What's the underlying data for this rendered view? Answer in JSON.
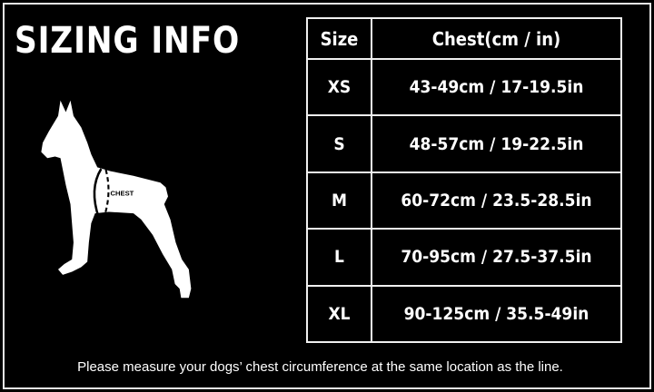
{
  "title": "SIZING INFO",
  "diagram": {
    "chest_label": "CHEST"
  },
  "table": {
    "headers": [
      "Size",
      "Chest(cm / in)"
    ],
    "rows": [
      {
        "size": "XS",
        "chest": "43-49cm / 17-19.5in"
      },
      {
        "size": "S",
        "chest": "48-57cm / 19-22.5in"
      },
      {
        "size": "M",
        "chest": "60-72cm / 23.5-28.5in"
      },
      {
        "size": "L",
        "chest": "70-95cm / 27.5-37.5in"
      },
      {
        "size": "XL",
        "chest": "90-125cm / 35.5-49in"
      }
    ]
  },
  "note": "Please measure your dogs’  chest circumference at the same location as the line."
}
